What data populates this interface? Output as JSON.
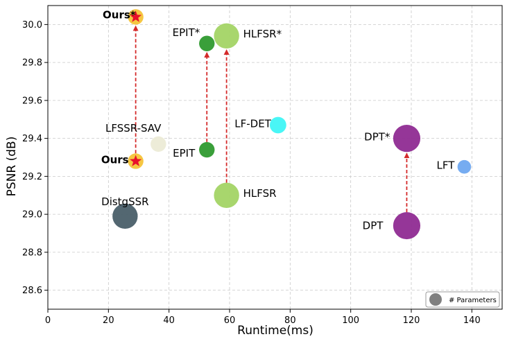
{
  "chart_data": {
    "type": "scatter",
    "xlabel": "Runtime(ms)",
    "ylabel": "PSNR (dB)",
    "xlim": [
      0,
      150
    ],
    "ylim": [
      28.5,
      30.1
    ],
    "x_ticks": [
      0,
      20,
      40,
      60,
      80,
      100,
      120,
      140
    ],
    "y_ticks": [
      28.6,
      28.8,
      29.0,
      29.2,
      29.4,
      29.6,
      29.8,
      30.0
    ],
    "grid": true,
    "legend": {
      "position": "bottom-right",
      "label": "# Parameters",
      "color": "#808080"
    },
    "points": [
      {
        "label": "DistgSSR",
        "x": 25.5,
        "y": 28.99,
        "color": "#4a5f69",
        "size": 1.3,
        "star": false,
        "bold": false
      },
      {
        "label": "LFSSR-SAV",
        "x": 36.5,
        "y": 29.37,
        "color": "#ecebd6",
        "size": 0.8,
        "star": false,
        "bold": false
      },
      {
        "label": "EPIT",
        "x": 52.5,
        "y": 29.34,
        "color": "#2f9a2f",
        "size": 0.8,
        "star": false,
        "bold": false
      },
      {
        "label": "EPIT*",
        "x": 52.5,
        "y": 29.9,
        "color": "#2f9a2f",
        "size": 0.8,
        "star": false,
        "bold": false
      },
      {
        "label": "HLFSR",
        "x": 59.0,
        "y": 29.1,
        "color": "#a3d465",
        "size": 1.3,
        "star": false,
        "bold": false
      },
      {
        "label": "HLFSR*",
        "x": 59.0,
        "y": 29.94,
        "color": "#a3d465",
        "size": 1.3,
        "star": false,
        "bold": false
      },
      {
        "label": "LF-DET",
        "x": 76.0,
        "y": 29.47,
        "color": "#3ff5f5",
        "size": 0.85,
        "star": false,
        "bold": false
      },
      {
        "label": "DPT",
        "x": 118.5,
        "y": 28.94,
        "color": "#8f2b92",
        "size": 1.4,
        "star": false,
        "bold": false
      },
      {
        "label": "DPT*",
        "x": 118.5,
        "y": 29.4,
        "color": "#8f2b92",
        "size": 1.4,
        "star": false,
        "bold": false
      },
      {
        "label": "LFT",
        "x": 137.5,
        "y": 29.25,
        "color": "#6fa8f0",
        "size": 0.7,
        "star": false,
        "bold": false
      },
      {
        "label": "Ours",
        "x": 29.0,
        "y": 29.28,
        "color": "#f6c338",
        "size": 0.8,
        "star": true,
        "bold": true
      },
      {
        "label": "Ours*",
        "x": 29.0,
        "y": 30.04,
        "color": "#f6c338",
        "size": 0.8,
        "star": true,
        "bold": true
      }
    ],
    "arrows": [
      {
        "from": [
          29.0,
          29.28
        ],
        "to": [
          29.0,
          30.04
        ]
      },
      {
        "from": [
          52.5,
          29.34
        ],
        "to": [
          52.5,
          29.9
        ]
      },
      {
        "from": [
          59.0,
          29.1
        ],
        "to": [
          59.0,
          29.94
        ]
      },
      {
        "from": [
          118.5,
          28.94
        ],
        "to": [
          118.5,
          29.4
        ]
      }
    ],
    "colors": {
      "arrow": "#d42a2a",
      "star": "#e8102a",
      "grid": "#c8c8c8"
    }
  }
}
